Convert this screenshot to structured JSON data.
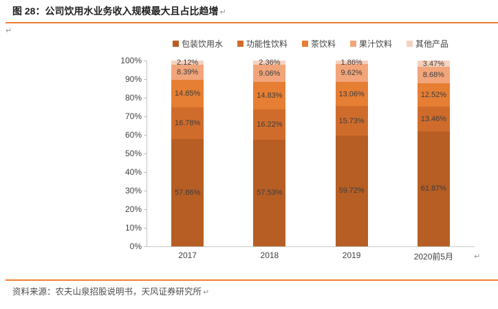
{
  "header": {
    "title": "图 28：公司饮用水业务收入规模最大且占比趋增",
    "return_mark": "↵"
  },
  "stray_return_mark": "↵",
  "footer": {
    "source": "资料来源：农夫山泉招股说明书，天风证券研究所",
    "return_mark": "↵"
  },
  "chart_data": {
    "type": "bar",
    "stacked": true,
    "categories": [
      "2017",
      "2018",
      "2019",
      "2020前5月"
    ],
    "series": [
      {
        "name": "包装饮用水",
        "color": "#B65E24",
        "values": [
          57.86,
          57.53,
          59.72,
          61.87
        ]
      },
      {
        "name": "功能性饮料",
        "color": "#D06C2B",
        "values": [
          16.78,
          16.22,
          15.73,
          13.46
        ]
      },
      {
        "name": "茶饮料",
        "color": "#E67E33",
        "values": [
          14.85,
          14.83,
          13.06,
          12.52
        ]
      },
      {
        "name": "果汁饮料",
        "color": "#F2A57A",
        "values": [
          8.39,
          9.06,
          9.62,
          8.68
        ]
      },
      {
        "name": "其他产品",
        "color": "#F6D2BE",
        "values": [
          2.12,
          2.36,
          1.86,
          3.47
        ]
      }
    ],
    "value_suffix": "%",
    "ylim": [
      0,
      100
    ],
    "y_ticks": [
      "100%",
      "90%",
      "80%",
      "70%",
      "60%",
      "50%",
      "40%",
      "30%",
      "20%",
      "10%",
      "0%"
    ],
    "legend_position": "top",
    "grid": false,
    "x_return_mark": "↵"
  }
}
